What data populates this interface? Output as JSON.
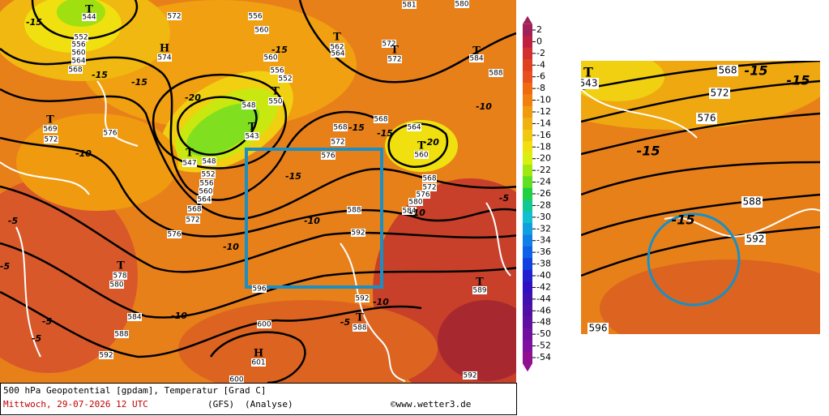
{
  "footer": {
    "title": "500 hPa Geopotential [gpdam], Temperatur [Grad C]",
    "date": "Mittwoch, 29-07-2026  12 UTC",
    "model": "(GFS)",
    "run": "(Analyse)",
    "copyright": "©www.wetter3.de"
  },
  "scale": {
    "ticks": [
      2,
      0,
      -2,
      -4,
      -6,
      -8,
      -10,
      -12,
      -14,
      -16,
      -18,
      -20,
      -22,
      -24,
      -26,
      -28,
      -30,
      -32,
      -34,
      -36,
      -38,
      -40,
      -42,
      -44,
      -46,
      -48,
      -50,
      -52,
      -54
    ],
    "colors": [
      "#a0205a",
      "#c02040",
      "#d03030",
      "#e04020",
      "#e85020",
      "#f06a10",
      "#f08010",
      "#f09a10",
      "#f0b010",
      "#f0c810",
      "#f0e010",
      "#d8f010",
      "#a0e810",
      "#60e020",
      "#20d040",
      "#10c890",
      "#10c0d0",
      "#10a0e0",
      "#1080e8",
      "#1060e8",
      "#1040e0",
      "#2020d0",
      "#3010c0",
      "#4010b0",
      "#5010a8",
      "#6010a0",
      "#7010a0",
      "#8010a0",
      "#901090"
    ]
  },
  "map_labels": [
    "T",
    "544",
    "572",
    "556",
    "560",
    "552",
    "556",
    "560",
    "564",
    "568",
    "-15",
    "-15",
    "-15",
    "H",
    "574",
    "T",
    "569",
    "572",
    "576",
    "-10",
    "-20",
    "548",
    "T",
    "543",
    "T",
    "550",
    "552",
    "560",
    "-15",
    "556",
    "T",
    "562",
    "564",
    "572",
    "T",
    "572",
    "T",
    "584",
    "588",
    "568",
    "-10",
    "564",
    "-15",
    "T",
    "560",
    "-20",
    "568",
    "-15",
    "572",
    "576",
    "-15",
    "568",
    "572",
    "576",
    "580",
    "584",
    "-10",
    "-5",
    "T",
    "547",
    "548",
    "552",
    "556",
    "560",
    "564",
    "568",
    "572",
    "576",
    "-10",
    "588",
    "-10",
    "592",
    "-5",
    "-5",
    "T",
    "578",
    "580",
    "596",
    "584",
    "-10",
    "588",
    "-5",
    "-5",
    "592",
    "600",
    "H",
    "601",
    "592",
    "-10",
    "T",
    "588",
    "-5",
    "T",
    "589",
    "592",
    "600",
    "581",
    "580"
  ],
  "inset_labels": [
    "T",
    "543",
    "568",
    "-15",
    "-15",
    "572",
    "576",
    "-15",
    "588",
    "-15",
    "592",
    "596"
  ]
}
